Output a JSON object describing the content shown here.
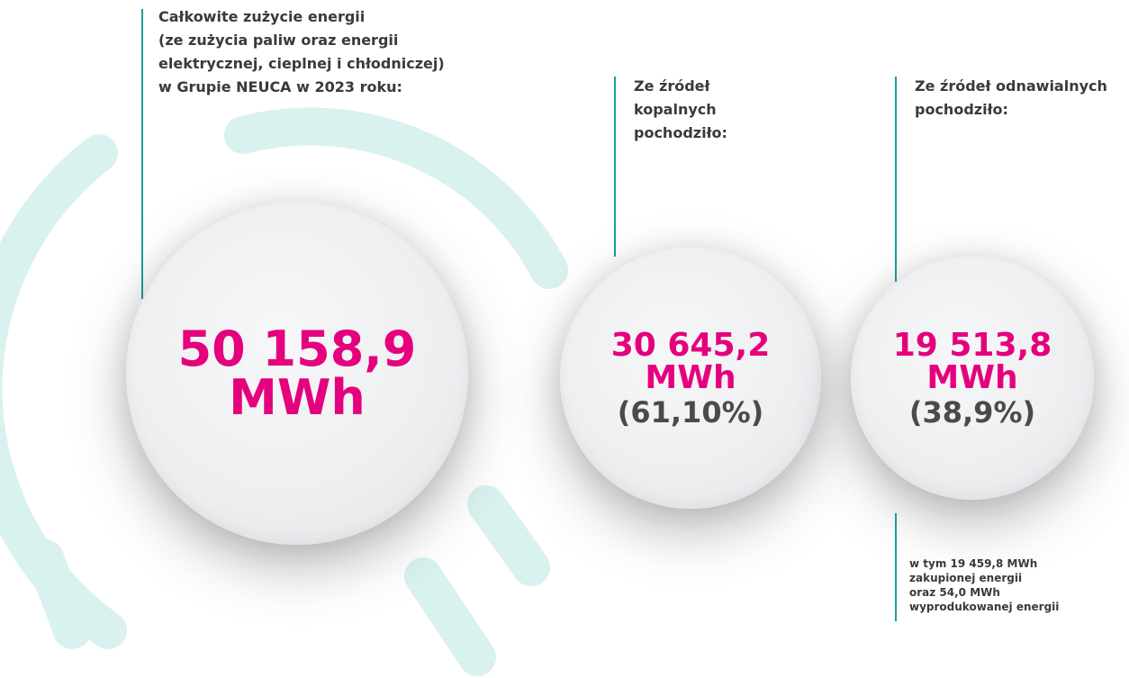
{
  "total": {
    "label": [
      "Całkowite zużycie energii",
      "(ze zużycia paliw oraz energii",
      "elektrycznej, cieplnej i chłodniczej)",
      "w Grupie NEUCA w 2023 roku:"
    ],
    "value": "50 158,9",
    "unit": "MWh"
  },
  "fossil": {
    "label": [
      "Ze źródeł",
      "kopalnych",
      "pochodziło:"
    ],
    "value": "30 645,2",
    "unit": "MWh",
    "share": "(61,10%)"
  },
  "renewable": {
    "label": [
      "Ze źródeł odnawialnych",
      "pochodziło:"
    ],
    "value": "19 513,8",
    "unit": "MWh",
    "share": "(38,9%)",
    "note": [
      "w tym 19 459,8 MWh",
      "zakupionej energii",
      "oraz 54,0 MWh",
      "wyprodukowanej energii"
    ]
  }
}
